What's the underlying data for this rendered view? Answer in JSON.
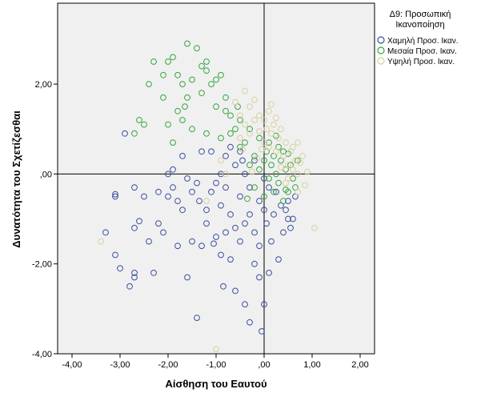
{
  "chart_data": {
    "type": "scatter",
    "xlabel": "Αίσθηση του Εαυτού",
    "ylabel": "Δυνατότητα του Σχετίζεσθαι",
    "xlim": [
      -4.3,
      2.3
    ],
    "ylim": [
      -4.0,
      3.8
    ],
    "xticks": [
      "-4,00",
      "-3,00",
      "-2,00",
      "-1,00",
      ",00",
      "1,00",
      "2,00"
    ],
    "yticks": [
      "-4,00",
      "-2,00",
      ",00",
      "2,00"
    ],
    "reference_lines": {
      "x": 0,
      "y": 0
    },
    "legend": {
      "title_lines": [
        "Δ9: Προσωπική",
        "Ικανοποίηση"
      ],
      "placement": "right"
    },
    "series": [
      {
        "name": "Χαμηλή Προσ. Ικαν.",
        "color": "#3a4f9f",
        "points": [
          [
            -3.3,
            -1.3
          ],
          [
            -3.1,
            -0.5
          ],
          [
            -3.1,
            -0.45
          ],
          [
            -3.1,
            -1.8
          ],
          [
            -3.0,
            -2.1
          ],
          [
            -2.8,
            -2.5
          ],
          [
            -2.7,
            -0.3
          ],
          [
            -2.7,
            -1.2
          ],
          [
            -2.7,
            -2.2
          ],
          [
            -2.7,
            -2.3
          ],
          [
            -2.6,
            -1.05
          ],
          [
            -2.5,
            -0.5
          ],
          [
            -2.4,
            -1.5
          ],
          [
            -2.3,
            -2.2
          ],
          [
            -2.2,
            -0.4
          ],
          [
            -2.2,
            -1.1
          ],
          [
            -2.1,
            -1.3
          ],
          [
            -2.0,
            0.0
          ],
          [
            -2.0,
            -0.5
          ],
          [
            -1.9,
            0.1
          ],
          [
            -1.9,
            -0.3
          ],
          [
            -1.8,
            -0.6
          ],
          [
            -1.8,
            -1.6
          ],
          [
            -1.7,
            0.4
          ],
          [
            -1.7,
            -0.8
          ],
          [
            -1.6,
            -0.1
          ],
          [
            -1.6,
            -2.3
          ],
          [
            -1.5,
            -1.5
          ],
          [
            -1.5,
            -0.4
          ],
          [
            -1.4,
            -0.2
          ],
          [
            -1.4,
            -3.2
          ],
          [
            -1.3,
            -1.6
          ],
          [
            -1.3,
            0.5
          ],
          [
            -1.2,
            -0.8
          ],
          [
            -1.2,
            -1.1
          ],
          [
            -1.1,
            0.5
          ],
          [
            -1.1,
            -0.4
          ],
          [
            -1.0,
            -0.2
          ],
          [
            -1.0,
            -1.4
          ],
          [
            -0.9,
            0.0
          ],
          [
            -0.9,
            -0.7
          ],
          [
            -0.9,
            -1.8
          ],
          [
            -0.8,
            0.4
          ],
          [
            -0.8,
            -0.3
          ],
          [
            -0.8,
            -1.3
          ],
          [
            -0.7,
            0.6
          ],
          [
            -0.7,
            -0.9
          ],
          [
            -0.7,
            -1.9
          ],
          [
            -0.6,
            0.2
          ],
          [
            -0.6,
            -1.2
          ],
          [
            -0.6,
            -2.6
          ],
          [
            -0.5,
            0.5
          ],
          [
            -0.5,
            -0.5
          ],
          [
            -0.5,
            -1.5
          ],
          [
            -0.4,
            0.0
          ],
          [
            -0.4,
            -2.9
          ],
          [
            -0.4,
            -1.1
          ],
          [
            -0.3,
            -0.3
          ],
          [
            -0.3,
            -0.9
          ],
          [
            -0.3,
            -3.3
          ],
          [
            -0.2,
            0.3
          ],
          [
            -0.2,
            -2.0
          ],
          [
            -0.2,
            -1.3
          ],
          [
            -0.1,
            -0.6
          ],
          [
            -0.1,
            -1.6
          ],
          [
            -0.1,
            -2.3
          ],
          [
            -0.05,
            -3.5
          ],
          [
            0.0,
            -0.1
          ],
          [
            0.0,
            -0.8
          ],
          [
            0.0,
            -2.9
          ],
          [
            0.05,
            -1.1
          ],
          [
            0.1,
            -0.3
          ],
          [
            0.1,
            -2.2
          ],
          [
            0.15,
            -1.5
          ],
          [
            0.2,
            -0.9
          ],
          [
            0.25,
            -0.4
          ],
          [
            0.3,
            -1.9
          ],
          [
            0.35,
            -0.7
          ],
          [
            0.4,
            -1.3
          ],
          [
            0.45,
            -0.8
          ],
          [
            0.5,
            -1.0
          ],
          [
            0.5,
            -0.6
          ],
          [
            0.55,
            -1.2
          ],
          [
            0.6,
            -1.0
          ],
          [
            0.65,
            -0.5
          ],
          [
            -2.9,
            0.9
          ],
          [
            -0.45,
            0.3
          ],
          [
            -1.35,
            -0.6
          ],
          [
            -0.85,
            -2.5
          ],
          [
            -1.05,
            -1.55
          ]
        ]
      },
      {
        "name": "Μεσαία Προσ. Ικαν.",
        "color": "#35a63f",
        "points": [
          [
            -2.7,
            0.9
          ],
          [
            -2.6,
            1.2
          ],
          [
            -2.5,
            1.1
          ],
          [
            -2.4,
            2.0
          ],
          [
            -2.3,
            2.5
          ],
          [
            -2.1,
            2.2
          ],
          [
            -2.1,
            1.7
          ],
          [
            -2.0,
            2.5
          ],
          [
            -2.0,
            1.1
          ],
          [
            -1.9,
            2.6
          ],
          [
            -1.9,
            0.7
          ],
          [
            -1.8,
            2.2
          ],
          [
            -1.8,
            1.4
          ],
          [
            -1.7,
            2.0
          ],
          [
            -1.7,
            1.2
          ],
          [
            -1.6,
            2.9
          ],
          [
            -1.6,
            1.7
          ],
          [
            -1.5,
            2.1
          ],
          [
            -1.5,
            1.0
          ],
          [
            -1.4,
            2.8
          ],
          [
            -1.3,
            2.4
          ],
          [
            -1.3,
            1.8
          ],
          [
            -1.2,
            2.5
          ],
          [
            -1.2,
            2.3
          ],
          [
            -1.2,
            0.9
          ],
          [
            -1.1,
            2.0
          ],
          [
            -1.0,
            1.5
          ],
          [
            -1.0,
            2.1
          ],
          [
            -0.9,
            2.2
          ],
          [
            -0.9,
            0.8
          ],
          [
            -0.8,
            1.4
          ],
          [
            -0.8,
            1.7
          ],
          [
            -0.7,
            0.9
          ],
          [
            -0.7,
            1.3
          ],
          [
            -0.6,
            1.0
          ],
          [
            -0.5,
            1.2
          ],
          [
            -0.5,
            0.6
          ],
          [
            -0.4,
            0.7
          ],
          [
            -0.3,
            0.2
          ],
          [
            -0.3,
            1.0
          ],
          [
            -0.2,
            0.4
          ],
          [
            -0.2,
            -0.3
          ],
          [
            -0.1,
            0.1
          ],
          [
            -0.1,
            0.8
          ],
          [
            0.0,
            0.3
          ],
          [
            0.0,
            -0.5
          ],
          [
            0.05,
            0.5
          ],
          [
            0.1,
            -0.1
          ],
          [
            0.1,
            0.7
          ],
          [
            0.15,
            0.2
          ],
          [
            0.2,
            -0.4
          ],
          [
            0.2,
            0.4
          ],
          [
            0.25,
            0.0
          ],
          [
            0.3,
            0.6
          ],
          [
            0.3,
            -0.2
          ],
          [
            0.35,
            0.3
          ],
          [
            0.4,
            -0.6
          ],
          [
            0.4,
            0.5
          ],
          [
            0.45,
            0.1
          ],
          [
            0.5,
            -0.4
          ],
          [
            0.5,
            0.45
          ],
          [
            0.55,
            0.2
          ],
          [
            0.6,
            -0.1
          ],
          [
            0.65,
            -0.3
          ],
          [
            0.7,
            0.3
          ],
          [
            0.45,
            -0.35
          ],
          [
            -0.55,
            1.5
          ],
          [
            -1.65,
            1.5
          ],
          [
            -0.35,
            -0.55
          ],
          [
            0.25,
            0.85
          ]
        ]
      },
      {
        "name": "Υψηλή Προσ. Ικαν.",
        "color": "#d8d0a0",
        "points": [
          [
            -3.4,
            -1.5
          ],
          [
            -1.2,
            -0.6
          ],
          [
            -1.0,
            -3.9
          ],
          [
            -0.9,
            0.3
          ],
          [
            -0.8,
            0.0
          ],
          [
            -0.6,
            1.6
          ],
          [
            -0.5,
            1.3
          ],
          [
            -0.5,
            0.8
          ],
          [
            -0.4,
            1.85
          ],
          [
            -0.4,
            1.1
          ],
          [
            -0.3,
            1.5
          ],
          [
            -0.3,
            0.9
          ],
          [
            -0.2,
            1.65
          ],
          [
            -0.2,
            1.2
          ],
          [
            -0.1,
            1.3
          ],
          [
            -0.1,
            0.95
          ],
          [
            0.0,
            1.2
          ],
          [
            0.0,
            0.7
          ],
          [
            0.05,
            1.0
          ],
          [
            0.1,
            1.4
          ],
          [
            0.1,
            0.6
          ],
          [
            0.15,
            0.9
          ],
          [
            0.2,
            1.1
          ],
          [
            0.25,
            0.5
          ],
          [
            0.3,
            0.8
          ],
          [
            0.35,
            1.0
          ],
          [
            0.4,
            0.4
          ],
          [
            0.45,
            0.7
          ],
          [
            0.5,
            0.2
          ],
          [
            0.55,
            0.5
          ],
          [
            0.6,
            0.1
          ],
          [
            0.6,
            0.6
          ],
          [
            0.65,
            0.3
          ],
          [
            0.7,
            0.0
          ],
          [
            0.75,
            0.25
          ],
          [
            0.8,
            0.4
          ],
          [
            0.9,
            0.05
          ],
          [
            1.05,
            -1.2
          ],
          [
            0.7,
            -0.4
          ],
          [
            0.5,
            -0.1
          ],
          [
            -0.15,
            0.35
          ],
          [
            -0.05,
            0.55
          ],
          [
            0.25,
            1.25
          ],
          [
            0.15,
            1.55
          ],
          [
            -0.25,
            0.05
          ],
          [
            0.45,
            -0.2
          ],
          [
            0.35,
            0.15
          ],
          [
            -0.45,
            0.55
          ],
          [
            0.7,
            0.7
          ],
          [
            0.85,
            -0.25
          ]
        ]
      }
    ]
  }
}
